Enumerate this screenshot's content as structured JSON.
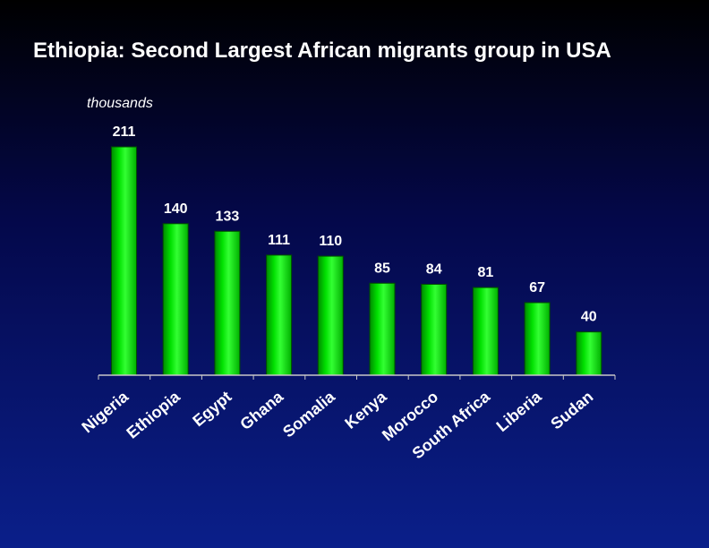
{
  "chart_data": {
    "type": "bar",
    "title": "Ethiopia: Second Largest African migrants group in USA",
    "unit_label": "thousands",
    "categories": [
      "Nigeria",
      "Ethiopia",
      "Egypt",
      "Ghana",
      "Somalia",
      "Kenya",
      "Morocco",
      "South Africa",
      "Liberia",
      "Sudan"
    ],
    "values": [
      211,
      140,
      133,
      111,
      110,
      85,
      84,
      81,
      67,
      40
    ],
    "ylim": [
      0,
      211
    ],
    "grid": false,
    "legend": "none",
    "colors": {
      "bar": "#00e000",
      "bar_highlight": "#66ff66",
      "bar_shadow": "#008a00",
      "background_top": "#000000",
      "background_bottom": "#0a1f8a",
      "text": "#ffffff"
    }
  }
}
